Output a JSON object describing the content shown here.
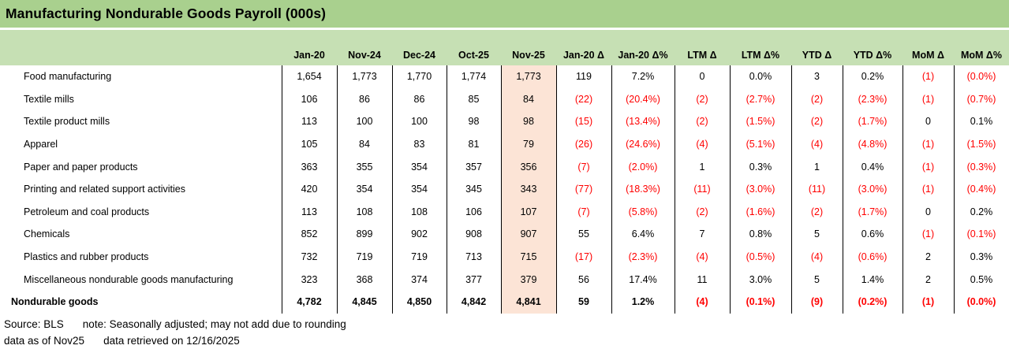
{
  "chart_data": {
    "type": "table",
    "title": "Manufacturing Nondurable Goods Payroll (000s)",
    "columns": [
      "Jan-20",
      "Nov-24",
      "Dec-24",
      "Oct-25",
      "Nov-25",
      "Jan-20 Δ",
      "Jan-20 Δ%",
      "LTM Δ",
      "LTM Δ%",
      "YTD Δ",
      "YTD Δ%",
      "MoM Δ",
      "MoM Δ%"
    ],
    "highlighted_column": "Nov-25",
    "rows": [
      {
        "label": "Food manufacturing",
        "total": false,
        "values": [
          "1,654",
          "1,773",
          "1,770",
          "1,774",
          "1,773",
          "119",
          "7.2%",
          "0",
          "0.0%",
          "3",
          "0.2%",
          "(1)",
          "(0.0%)"
        ]
      },
      {
        "label": "Textile mills",
        "total": false,
        "values": [
          "106",
          "86",
          "86",
          "85",
          "84",
          "(22)",
          "(20.4%)",
          "(2)",
          "(2.7%)",
          "(2)",
          "(2.3%)",
          "(1)",
          "(0.7%)"
        ]
      },
      {
        "label": "Textile product mills",
        "total": false,
        "values": [
          "113",
          "100",
          "100",
          "98",
          "98",
          "(15)",
          "(13.4%)",
          "(2)",
          "(1.5%)",
          "(2)",
          "(1.7%)",
          "0",
          "0.1%"
        ]
      },
      {
        "label": "Apparel",
        "total": false,
        "values": [
          "105",
          "84",
          "83",
          "81",
          "79",
          "(26)",
          "(24.6%)",
          "(4)",
          "(5.1%)",
          "(4)",
          "(4.8%)",
          "(1)",
          "(1.5%)"
        ]
      },
      {
        "label": "Paper and paper products",
        "total": false,
        "values": [
          "363",
          "355",
          "354",
          "357",
          "356",
          "(7)",
          "(2.0%)",
          "1",
          "0.3%",
          "1",
          "0.4%",
          "(1)",
          "(0.3%)"
        ]
      },
      {
        "label": "Printing and related support activities",
        "total": false,
        "values": [
          "420",
          "354",
          "354",
          "345",
          "343",
          "(77)",
          "(18.3%)",
          "(11)",
          "(3.0%)",
          "(11)",
          "(3.0%)",
          "(1)",
          "(0.4%)"
        ]
      },
      {
        "label": "Petroleum and coal products",
        "total": false,
        "values": [
          "113",
          "108",
          "108",
          "106",
          "107",
          "(7)",
          "(5.8%)",
          "(2)",
          "(1.6%)",
          "(2)",
          "(1.7%)",
          "0",
          "0.2%"
        ]
      },
      {
        "label": "Chemicals",
        "total": false,
        "values": [
          "852",
          "899",
          "902",
          "908",
          "907",
          "55",
          "6.4%",
          "7",
          "0.8%",
          "5",
          "0.6%",
          "(1)",
          "(0.1%)"
        ]
      },
      {
        "label": "Plastics and rubber products",
        "total": false,
        "values": [
          "732",
          "719",
          "719",
          "713",
          "715",
          "(17)",
          "(2.3%)",
          "(4)",
          "(0.5%)",
          "(4)",
          "(0.6%)",
          "2",
          "0.3%"
        ]
      },
      {
        "label": "Miscellaneous nondurable goods manufacturing",
        "total": false,
        "values": [
          "323",
          "368",
          "374",
          "377",
          "379",
          "56",
          "17.4%",
          "11",
          "3.0%",
          "5",
          "1.4%",
          "2",
          "0.5%"
        ]
      },
      {
        "label": "Nondurable goods",
        "total": true,
        "values": [
          "4,782",
          "4,845",
          "4,850",
          "4,842",
          "4,841",
          "59",
          "1.2%",
          "(4)",
          "(0.1%)",
          "(9)",
          "(0.2%)",
          "(1)",
          "(0.0%)"
        ]
      }
    ]
  },
  "footer": {
    "source": "Source: BLS",
    "note": "note: Seasonally adjusted; may not add due to rounding",
    "as_of": "data as of Nov25",
    "retrieved": "data retrieved on 12/16/2025"
  },
  "colors": {
    "title_bar_bg": "#A9D08E",
    "header_row_bg": "#C6E0B4",
    "highlight_column_bg": "#FCE4D6",
    "negative_text": "#FF0000",
    "border": "#000000"
  }
}
